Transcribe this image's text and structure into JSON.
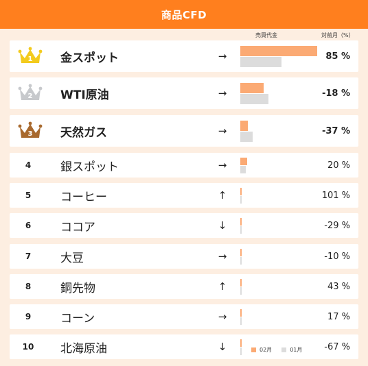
{
  "header": {
    "title": "商品CFD"
  },
  "columns": {
    "sales": "売買代金",
    "mom": "対前月（%）"
  },
  "legend": {
    "current": "02月",
    "previous": "01月"
  },
  "colors": {
    "header": "#ff7f1e",
    "current": "#fbaa74",
    "previous": "#dcdcdc",
    "gold": "#f3cb1e",
    "silver": "#c7c9cc",
    "bronze": "#a8692e"
  },
  "chart_data": {
    "type": "bar",
    "categories": [
      "金スポット",
      "WTI原油",
      "天然ガス",
      "銀スポット",
      "コーヒー",
      "ココア",
      "大豆",
      "銅先物",
      "コーン",
      "北海原油"
    ],
    "series": [
      {
        "name": "02月",
        "values": [
          100,
          30,
          10,
          9,
          1.5,
          1.3,
          0.8,
          0.7,
          0.6,
          0.5
        ]
      },
      {
        "name": "01月",
        "values": [
          54,
          37,
          16,
          7,
          0.8,
          1.8,
          0.9,
          0.5,
          0.5,
          1.4
        ]
      }
    ],
    "ylim": [
      0,
      100
    ]
  },
  "rows": [
    {
      "rank": "1",
      "name": "金スポット",
      "arrow": "→",
      "pct": "85 %",
      "medal": "gold"
    },
    {
      "rank": "2",
      "name": "WTI原油",
      "arrow": "→",
      "pct": "-18 %",
      "medal": "silver"
    },
    {
      "rank": "3",
      "name": "天然ガス",
      "arrow": "→",
      "pct": "-37 %",
      "medal": "bronze"
    },
    {
      "rank": "4",
      "name": "銀スポット",
      "arrow": "→",
      "pct": "20 %"
    },
    {
      "rank": "5",
      "name": "コーヒー",
      "arrow": "↑",
      "pct": "101 %"
    },
    {
      "rank": "6",
      "name": "ココア",
      "arrow": "↓",
      "pct": "-29 %"
    },
    {
      "rank": "7",
      "name": "大豆",
      "arrow": "→",
      "pct": "-10 %"
    },
    {
      "rank": "8",
      "name": "銅先物",
      "arrow": "↑",
      "pct": "43 %"
    },
    {
      "rank": "9",
      "name": "コーン",
      "arrow": "→",
      "pct": "17 %"
    },
    {
      "rank": "10",
      "name": "北海原油",
      "arrow": "↓",
      "pct": "-67 %"
    }
  ]
}
